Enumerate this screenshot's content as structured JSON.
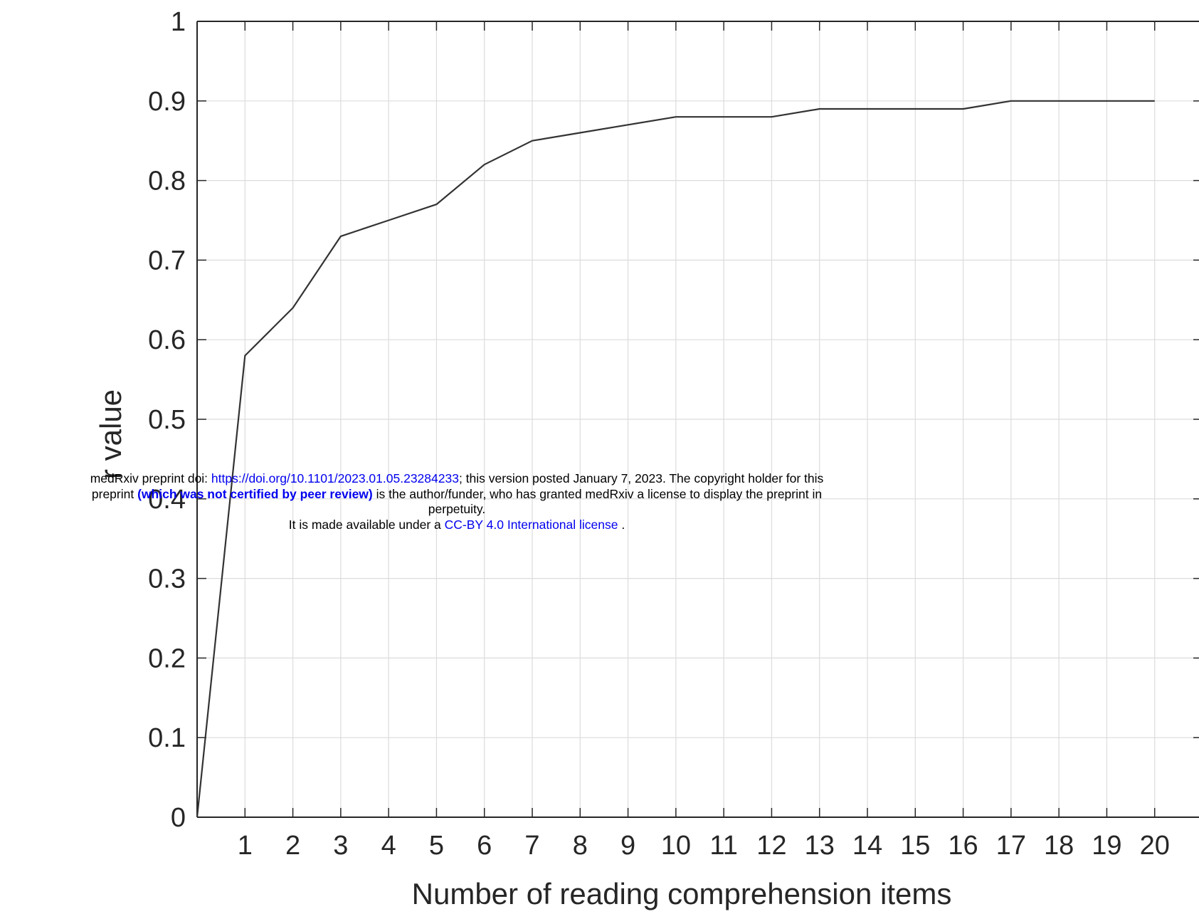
{
  "chart_data": {
    "type": "line",
    "title": "",
    "xlabel": "Number of reading comprehension items",
    "ylabel": "r value",
    "xlim": [
      0,
      21
    ],
    "ylim": [
      0,
      1
    ],
    "xticks": [
      "1",
      "2",
      "3",
      "4",
      "5",
      "6",
      "7",
      "8",
      "9",
      "10",
      "11",
      "12",
      "13",
      "14",
      "15",
      "16",
      "17",
      "18",
      "19",
      "20"
    ],
    "yticks": [
      "0",
      "0.1",
      "0.2",
      "0.3",
      "0.4",
      "0.5",
      "0.6",
      "0.7",
      "0.8",
      "0.9",
      "1"
    ],
    "grid": true,
    "series": [
      {
        "x": [
          0,
          1,
          2,
          3,
          4,
          5,
          6,
          7,
          8,
          9,
          10,
          11,
          12,
          13,
          14,
          15,
          16,
          17,
          18,
          19,
          20
        ],
        "values": [
          0,
          0.58,
          0.64,
          0.73,
          0.75,
          0.77,
          0.82,
          0.85,
          0.86,
          0.87,
          0.88,
          0.88,
          0.88,
          0.89,
          0.89,
          0.89,
          0.89,
          0.9,
          0.9,
          0.9,
          0.9
        ],
        "color": "#333333"
      }
    ]
  },
  "notice": {
    "l1_a": "medRxiv preprint doi: ",
    "l1_link": "https://doi.org/10.1101/2023.01.05.23284233",
    "l1_b": "; this version posted January 7, 2023. The copyright holder for this",
    "l2_a": "preprint ",
    "l2_bold": "(which was not certified by peer review)",
    "l2_b": " is the author/funder, who has granted medRxiv a license to display the preprint in",
    "l3": "perpetuity.",
    "l4_a": "It is made available under a ",
    "l4_link": "CC-BY 4.0 International license",
    "l4_b": " ."
  }
}
